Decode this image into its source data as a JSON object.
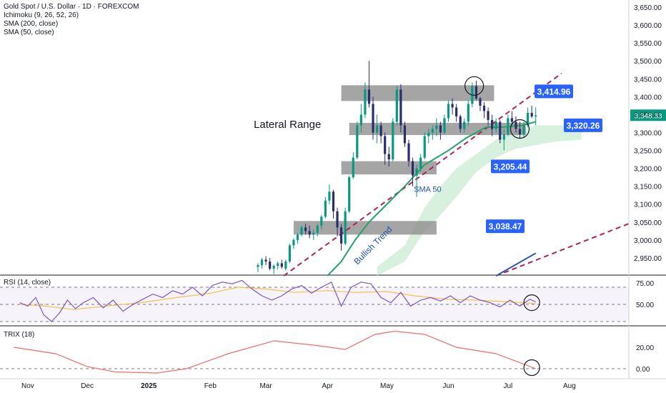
{
  "legend": {
    "symbol": "Gold Spot / U.S. Dollar · 1D · FOREXCOM",
    "ichimoku": "Ichimoku (9, 26, 52, 26)",
    "sma200": "SMA (200, close)",
    "sma50": "SMA (50, close)"
  },
  "panels": {
    "rsi_label": "RSI (14, close)",
    "trix_label": "TRIX (18)"
  },
  "colors": {
    "up": "#089981",
    "down": "#2a2e6b",
    "sma50": "#26a269",
    "sma200": "#3455b8",
    "dashed": "#b0215a",
    "label_bg": "#2962ff",
    "zone": "#8c8c8c",
    "rsi_line": "#7e57c2",
    "rsi_ma": "#f2c14e",
    "trix": "#f06c6c",
    "cloud": "#c8ebd2"
  },
  "chart_data": [
    {
      "type": "candlestick",
      "title": "Gold Spot / U.S. Dollar · 1D · FOREXCOM",
      "x_ticks": [
        "Nov",
        "Dec",
        "2025",
        "Feb",
        "Mar",
        "Apr",
        "May",
        "Jun",
        "Jul",
        "Aug"
      ],
      "y_ticks": [
        "3,650.00",
        "3,600.00",
        "3,550.00",
        "3,500.00",
        "3,450.00",
        "3,400.00",
        "3,350.00",
        "3,300.00",
        "3,250.00",
        "3,200.00",
        "3,150.00",
        "3,100.00",
        "3,050.00",
        "3,000.00",
        "2,950.00"
      ],
      "ylim": [
        2900,
        3670
      ],
      "last_price": "3,348.33",
      "price_labels": [
        {
          "value": 3414.96,
          "text": "3,414.96"
        },
        {
          "value": 3320.26,
          "text": "3,320.26"
        },
        {
          "value": 3205.44,
          "text": "3,205.44"
        },
        {
          "value": 3038.47,
          "text": "3,038.47"
        }
      ],
      "zones": [
        {
          "from": "2025-04-08",
          "to": "2025-06-24",
          "low": 3388,
          "high": 3432
        },
        {
          "from": "2025-04-12",
          "to": "2025-07-10",
          "low": 3293,
          "high": 3327
        },
        {
          "from": "2025-04-08",
          "to": "2025-05-26",
          "low": 3183,
          "high": 3220
        },
        {
          "from": "2025-03-15",
          "to": "2025-05-26",
          "low": 3015,
          "high": 3053
        }
      ],
      "annotations": [
        {
          "text": "Lateral Range",
          "date": "2025-03-01",
          "price": 3325
        },
        {
          "text": "SMA 50",
          "date": "2025-05-16",
          "price": 3150
        },
        {
          "text": "Bullish Trend",
          "date": "2025-04-14",
          "price": 3040
        }
      ],
      "ohlc": [
        [
          "2025-02-25",
          2925,
          2935,
          2910,
          2930
        ],
        [
          "2025-02-27",
          2930,
          2950,
          2920,
          2945
        ],
        [
          "2025-03-01",
          2945,
          2955,
          2930,
          2940
        ],
        [
          "2025-03-03",
          2940,
          2950,
          2915,
          2920
        ],
        [
          "2025-03-05",
          2920,
          2932,
          2905,
          2928
        ],
        [
          "2025-03-07",
          2928,
          2940,
          2918,
          2935
        ],
        [
          "2025-03-09",
          2935,
          2945,
          2920,
          2925
        ],
        [
          "2025-03-11",
          2920,
          2945,
          2915,
          2940
        ],
        [
          "2025-03-13",
          2940,
          2990,
          2935,
          2985
        ],
        [
          "2025-03-15",
          2985,
          3005,
          2975,
          3000
        ],
        [
          "2025-03-17",
          3000,
          3020,
          2990,
          3015
        ],
        [
          "2025-03-19",
          3015,
          3040,
          3010,
          3035
        ],
        [
          "2025-03-21",
          3035,
          3045,
          3015,
          3025
        ],
        [
          "2025-03-23",
          3025,
          3040,
          3005,
          3015
        ],
        [
          "2025-03-25",
          3015,
          3030,
          3000,
          3020
        ],
        [
          "2025-03-27",
          3020,
          3045,
          3010,
          3040
        ],
        [
          "2025-03-29",
          3040,
          3070,
          3030,
          3065
        ],
        [
          "2025-03-31",
          3065,
          3120,
          3060,
          3110
        ],
        [
          "2025-04-02",
          3110,
          3155,
          3100,
          3135
        ],
        [
          "2025-04-04",
          3135,
          3140,
          3060,
          3080
        ],
        [
          "2025-04-06",
          3080,
          3090,
          3010,
          3035
        ],
        [
          "2025-04-08",
          3035,
          3045,
          2970,
          2990
        ],
        [
          "2025-04-10",
          2990,
          3090,
          2985,
          3080
        ],
        [
          "2025-04-12",
          3080,
          3180,
          3075,
          3175
        ],
        [
          "2025-04-14",
          3175,
          3245,
          3170,
          3230
        ],
        [
          "2025-04-16",
          3230,
          3330,
          3225,
          3320
        ],
        [
          "2025-04-18",
          3320,
          3380,
          3300,
          3350
        ],
        [
          "2025-04-20",
          3350,
          3440,
          3340,
          3420
        ],
        [
          "2025-04-22",
          3420,
          3500,
          3370,
          3380
        ],
        [
          "2025-04-24",
          3380,
          3400,
          3280,
          3300
        ],
        [
          "2025-04-26",
          3300,
          3350,
          3270,
          3320
        ],
        [
          "2025-04-28",
          3320,
          3330,
          3270,
          3290
        ],
        [
          "2025-04-30",
          3290,
          3300,
          3210,
          3240
        ],
        [
          "2025-05-02",
          3240,
          3260,
          3205,
          3225
        ],
        [
          "2025-05-04",
          3225,
          3340,
          3220,
          3330
        ],
        [
          "2025-05-06",
          3330,
          3430,
          3320,
          3420
        ],
        [
          "2025-05-08",
          3420,
          3435,
          3300,
          3320
        ],
        [
          "2025-05-10",
          3320,
          3330,
          3260,
          3270
        ],
        [
          "2025-05-12",
          3270,
          3280,
          3205,
          3220
        ],
        [
          "2025-05-14",
          3220,
          3230,
          3150,
          3180
        ],
        [
          "2025-05-16",
          3180,
          3210,
          3120,
          3200
        ],
        [
          "2025-05-18",
          3200,
          3240,
          3190,
          3230
        ],
        [
          "2025-05-20",
          3230,
          3300,
          3225,
          3290
        ],
        [
          "2025-05-22",
          3290,
          3310,
          3270,
          3300
        ],
        [
          "2025-05-24",
          3300,
          3320,
          3280,
          3310
        ],
        [
          "2025-05-26",
          3310,
          3340,
          3290,
          3320
        ],
        [
          "2025-05-28",
          3320,
          3330,
          3280,
          3300
        ],
        [
          "2025-05-30",
          3300,
          3350,
          3295,
          3340
        ],
        [
          "2025-06-01",
          3340,
          3390,
          3330,
          3380
        ],
        [
          "2025-06-03",
          3380,
          3395,
          3350,
          3370
        ],
        [
          "2025-06-05",
          3370,
          3380,
          3330,
          3345
        ],
        [
          "2025-06-07",
          3345,
          3350,
          3300,
          3310
        ],
        [
          "2025-06-09",
          3310,
          3340,
          3300,
          3330
        ],
        [
          "2025-06-11",
          3330,
          3390,
          3320,
          3380
        ],
        [
          "2025-06-13",
          3380,
          3440,
          3370,
          3430
        ],
        [
          "2025-06-15",
          3430,
          3445,
          3390,
          3395
        ],
        [
          "2025-06-17",
          3395,
          3400,
          3360,
          3375
        ],
        [
          "2025-06-19",
          3375,
          3385,
          3340,
          3360
        ],
        [
          "2025-06-21",
          3360,
          3370,
          3320,
          3335
        ],
        [
          "2025-06-23",
          3335,
          3350,
          3290,
          3310
        ],
        [
          "2025-06-25",
          3310,
          3340,
          3300,
          3330
        ],
        [
          "2025-06-27",
          3330,
          3335,
          3270,
          3280
        ],
        [
          "2025-06-29",
          3280,
          3310,
          3250,
          3295
        ],
        [
          "2025-07-01",
          3295,
          3350,
          3290,
          3340
        ],
        [
          "2025-07-03",
          3340,
          3360,
          3320,
          3330
        ],
        [
          "2025-07-05",
          3330,
          3345,
          3300,
          3310
        ],
        [
          "2025-07-07",
          3310,
          3330,
          3285,
          3295
        ],
        [
          "2025-07-09",
          3295,
          3330,
          3285,
          3320
        ],
        [
          "2025-07-11",
          3320,
          3370,
          3315,
          3355
        ],
        [
          "2025-07-13",
          3355,
          3375,
          3340,
          3345
        ],
        [
          "2025-07-15",
          3345,
          3370,
          3320,
          3348
        ]
      ],
      "sma50": [
        [
          "2025-04-01",
          2900
        ],
        [
          "2025-04-08",
          2940
        ],
        [
          "2025-04-15",
          3000
        ],
        [
          "2025-04-22",
          3050
        ],
        [
          "2025-05-01",
          3100
        ],
        [
          "2025-05-10",
          3150
        ],
        [
          "2025-05-20",
          3210
        ],
        [
          "2025-06-01",
          3250
        ],
        [
          "2025-06-10",
          3285
        ],
        [
          "2025-06-20",
          3315
        ],
        [
          "2025-06-28",
          3315
        ],
        [
          "2025-07-08",
          3320
        ],
        [
          "2025-07-15",
          3330
        ]
      ],
      "sma200": [
        [
          "2025-06-25",
          2900
        ],
        [
          "2025-07-15",
          2963
        ]
      ],
      "trend_lines": [
        [
          [
            "2025-03-10",
            2900
          ],
          [
            "2025-07-28",
            3465
          ]
        ],
        [
          [
            "2025-06-25",
            2900
          ],
          [
            "2025-09-01",
            3048
          ]
        ]
      ],
      "cloud": [
        [
          "2025-04-26",
          2900,
          2925
        ],
        [
          "2025-05-10",
          2940,
          2985
        ],
        [
          "2025-05-20",
          3025,
          3090
        ],
        [
          "2025-05-28",
          3070,
          3150
        ],
        [
          "2025-06-05",
          3120,
          3200
        ],
        [
          "2025-06-15",
          3190,
          3240
        ],
        [
          "2025-06-25",
          3230,
          3280
        ],
        [
          "2025-07-05",
          3255,
          3305
        ],
        [
          "2025-07-15",
          3265,
          3320
        ],
        [
          "2025-07-25",
          3275,
          3320
        ],
        [
          "2025-08-07",
          3280,
          3320
        ]
      ],
      "circles": [
        {
          "date": "2025-06-14",
          "price": 3430
        },
        {
          "date": "2025-07-07",
          "price": 3310
        }
      ]
    },
    {
      "type": "line",
      "title": "RSI (14, close)",
      "y_ticks": [
        "75.00",
        "50.00"
      ],
      "ylim": [
        20,
        80
      ],
      "series": [
        {
          "values": [
            [
              "2024-10-28",
              52
            ],
            [
              "2024-11-01",
              48
            ],
            [
              "2024-11-05",
              58
            ],
            [
              "2024-11-09",
              38
            ],
            [
              "2024-11-13",
              30
            ],
            [
              "2024-11-17",
              40
            ],
            [
              "2024-11-21",
              55
            ],
            [
              "2024-11-25",
              45
            ],
            [
              "2024-11-29",
              52
            ],
            [
              "2024-12-04",
              58
            ],
            [
              "2024-12-09",
              46
            ],
            [
              "2024-12-14",
              55
            ],
            [
              "2024-12-19",
              42
            ],
            [
              "2024-12-24",
              50
            ],
            [
              "2024-12-29",
              56
            ],
            [
              "2025-01-03",
              62
            ],
            [
              "2025-01-08",
              58
            ],
            [
              "2025-01-13",
              66
            ],
            [
              "2025-01-18",
              62
            ],
            [
              "2025-01-23",
              70
            ],
            [
              "2025-01-28",
              60
            ],
            [
              "2025-02-02",
              72
            ],
            [
              "2025-02-07",
              76
            ],
            [
              "2025-02-12",
              74
            ],
            [
              "2025-02-17",
              78
            ],
            [
              "2025-02-22",
              68
            ],
            [
              "2025-02-27",
              60
            ],
            [
              "2025-03-04",
              55
            ],
            [
              "2025-03-09",
              60
            ],
            [
              "2025-03-14",
              68
            ],
            [
              "2025-03-19",
              72
            ],
            [
              "2025-03-24",
              63
            ],
            [
              "2025-03-29",
              70
            ],
            [
              "2025-04-03",
              76
            ],
            [
              "2025-04-08",
              48
            ],
            [
              "2025-04-13",
              70
            ],
            [
              "2025-04-18",
              76
            ],
            [
              "2025-04-23",
              74
            ],
            [
              "2025-04-28",
              58
            ],
            [
              "2025-05-03",
              52
            ],
            [
              "2025-05-08",
              64
            ],
            [
              "2025-05-13",
              48
            ],
            [
              "2025-05-18",
              55
            ],
            [
              "2025-05-23",
              58
            ],
            [
              "2025-05-28",
              54
            ],
            [
              "2025-06-02",
              60
            ],
            [
              "2025-06-07",
              52
            ],
            [
              "2025-06-12",
              60
            ],
            [
              "2025-06-17",
              55
            ],
            [
              "2025-06-22",
              52
            ],
            [
              "2025-06-27",
              47
            ],
            [
              "2025-07-02",
              55
            ],
            [
              "2025-07-07",
              48
            ],
            [
              "2025-07-12",
              56
            ],
            [
              "2025-07-15",
              53
            ]
          ]
        },
        {
          "values": [
            [
              "2024-10-28",
              50
            ],
            [
              "2024-11-10",
              48
            ],
            [
              "2024-11-24",
              44
            ],
            [
              "2024-12-10",
              48
            ],
            [
              "2024-12-28",
              52
            ],
            [
              "2025-01-15",
              58
            ],
            [
              "2025-02-01",
              63
            ],
            [
              "2025-02-15",
              70
            ],
            [
              "2025-03-01",
              68
            ],
            [
              "2025-03-15",
              64
            ],
            [
              "2025-04-01",
              66
            ],
            [
              "2025-04-15",
              64
            ],
            [
              "2025-05-01",
              65
            ],
            [
              "2025-05-15",
              60
            ],
            [
              "2025-06-01",
              56
            ],
            [
              "2025-06-15",
              55
            ],
            [
              "2025-07-01",
              53
            ],
            [
              "2025-07-15",
              51
            ]
          ]
        }
      ],
      "circle": {
        "date": "2025-07-13",
        "value": 52
      }
    },
    {
      "type": "line",
      "title": "TRIX (18)",
      "y_ticks": [
        "20.00",
        "0.00"
      ],
      "ylim": [
        -12,
        42
      ],
      "series": [
        {
          "values": [
            [
              "2024-10-25",
              20
            ],
            [
              "2024-11-15",
              14
            ],
            [
              "2024-12-01",
              2
            ],
            [
              "2024-12-15",
              -3
            ],
            [
              "2025-01-05",
              -4
            ],
            [
              "2025-01-20",
              0
            ],
            [
              "2025-02-10",
              14
            ],
            [
              "2025-03-05",
              26
            ],
            [
              "2025-03-25",
              22
            ],
            [
              "2025-04-10",
              18
            ],
            [
              "2025-04-25",
              32
            ],
            [
              "2025-05-05",
              35
            ],
            [
              "2025-05-20",
              32
            ],
            [
              "2025-06-05",
              20
            ],
            [
              "2025-06-25",
              14
            ],
            [
              "2025-07-15",
              0
            ]
          ]
        }
      ],
      "circle": {
        "date": "2025-07-13",
        "value": 1
      }
    }
  ]
}
